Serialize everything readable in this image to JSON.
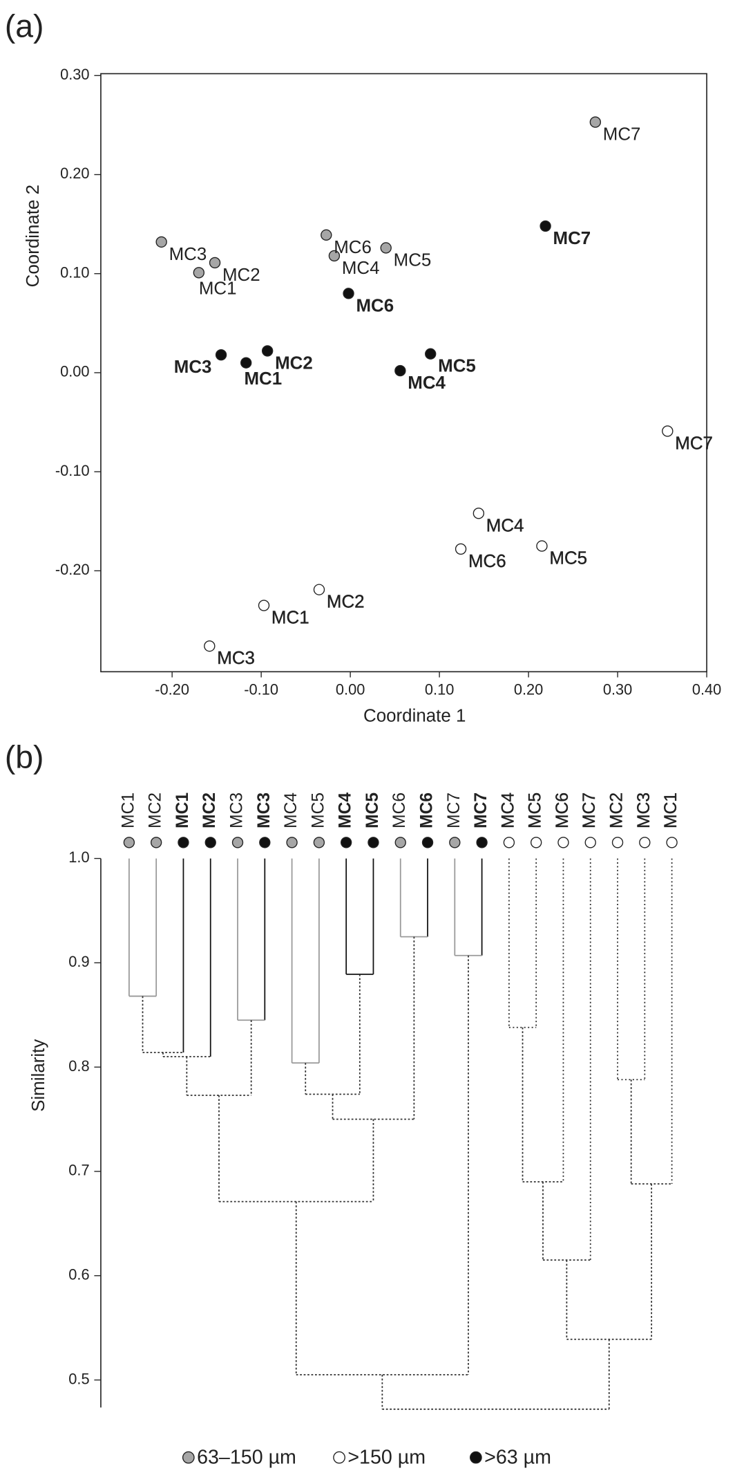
{
  "chart_data": [
    {
      "type": "scatter",
      "panel": "(a)",
      "x_label": "Coordinate 1",
      "y_label": "Coordinate 2",
      "xlim": [
        -0.28,
        0.4
      ],
      "ylim": [
        -0.3,
        0.3
      ],
      "xticks": [
        {
          "value": -0.2,
          "label": "-0.20"
        },
        {
          "value": -0.1,
          "label": "-0.10"
        },
        {
          "value": 0,
          "label": "0.00"
        },
        {
          "value": 0.1,
          "label": "0.10"
        },
        {
          "value": 0.2,
          "label": "0.20"
        },
        {
          "value": 0.3,
          "label": "0.30"
        },
        {
          "value": 0.4,
          "label": "0.40"
        }
      ],
      "yticks": [
        {
          "value": -0.2,
          "label": "-0.20"
        },
        {
          "value": -0.1,
          "label": "-0.10"
        },
        {
          "value": 0,
          "label": "0.00"
        },
        {
          "value": 0.1,
          "label": "0.10"
        },
        {
          "value": 0.2,
          "label": "0.20"
        },
        {
          "value": 0.3,
          "label": "0.30"
        }
      ],
      "series": [
        {
          "name": "63–150 µm",
          "color": "#a6a6a6",
          "labels": [
            "MC1",
            "MC2",
            "MC3",
            "MC4",
            "MC5",
            "MC6",
            "MC7"
          ],
          "x": [
            -0.17,
            -0.152,
            -0.212,
            -0.018,
            0.04,
            -0.027,
            0.275
          ],
          "values": [
            0.101,
            0.111,
            0.132,
            0.118,
            0.126,
            0.139,
            0.253
          ]
        },
        {
          "name": ">150 µm",
          "color": "#ffffff",
          "labels": [
            "MC1",
            "MC2",
            "MC3",
            "MC4",
            "MC5",
            "MC6",
            "MC7"
          ],
          "x": [
            -0.097,
            -0.035,
            -0.158,
            0.144,
            0.215,
            0.124,
            0.356
          ],
          "values": [
            -0.235,
            -0.219,
            -0.276,
            -0.142,
            -0.175,
            -0.178,
            -0.059
          ]
        },
        {
          "name": ">63 µm",
          "color": "#111111",
          "labels": [
            "MC1",
            "MC2",
            "MC3",
            "MC4",
            "MC5",
            "MC6",
            "MC7"
          ],
          "x": [
            -0.117,
            -0.093,
            -0.145,
            0.056,
            0.09,
            -0.002,
            0.219
          ],
          "values": [
            0.01,
            0.022,
            0.018,
            0.002,
            0.019,
            0.08,
            0.148
          ]
        }
      ]
    },
    {
      "type": "dendrogram",
      "panel": "(b)",
      "y_label": "Similarity",
      "ylim": [
        0.47,
        1.0
      ],
      "yticks": [
        {
          "value": 0.5,
          "label": "0.5"
        },
        {
          "value": 0.6,
          "label": "0.6"
        },
        {
          "value": 0.7,
          "label": "0.7"
        },
        {
          "value": 0.8,
          "label": "0.8"
        },
        {
          "value": 0.9,
          "label": "0.9"
        },
        {
          "value": 1.0,
          "label": "1.0"
        }
      ],
      "leaves": [
        "MC1",
        "MC2",
        "MC1",
        "MC2",
        "MC3",
        "MC3",
        "MC4",
        "MC5",
        "MC4",
        "MC5",
        "MC6",
        "MC6",
        "MC7",
        "MC7",
        "MC4",
        "MC5",
        "MC6",
        "MC7",
        "MC2",
        "MC3",
        "MC1"
      ],
      "leaf_groups": [
        0,
        0,
        2,
        2,
        0,
        2,
        0,
        0,
        2,
        2,
        0,
        2,
        0,
        2,
        1,
        1,
        1,
        1,
        1,
        1,
        1
      ],
      "merges": [
        {
          "children": [
            0,
            1
          ],
          "height": 0.868
        },
        {
          "children": [
            21,
            2
          ],
          "height": 0.814
        },
        {
          "children": [
            22,
            3
          ],
          "height": 0.81
        },
        {
          "children": [
            4,
            5
          ],
          "height": 0.845
        },
        {
          "children": [
            23,
            24
          ],
          "height": 0.773
        },
        {
          "children": [
            6,
            7
          ],
          "height": 0.804
        },
        {
          "children": [
            8,
            9
          ],
          "height": 0.889
        },
        {
          "children": [
            26,
            27
          ],
          "height": 0.774
        },
        {
          "children": [
            10,
            11
          ],
          "height": 0.925
        },
        {
          "children": [
            28,
            29
          ],
          "height": 0.75
        },
        {
          "children": [
            25,
            30
          ],
          "height": 0.671
        },
        {
          "children": [
            12,
            13
          ],
          "height": 0.907
        },
        {
          "children": [
            31,
            32
          ],
          "height": 0.505
        },
        {
          "children": [
            14,
            15
          ],
          "height": 0.838
        },
        {
          "children": [
            34,
            16
          ],
          "height": 0.69
        },
        {
          "children": [
            35,
            17
          ],
          "height": 0.615
        },
        {
          "children": [
            18,
            19
          ],
          "height": 0.788
        },
        {
          "children": [
            37,
            20
          ],
          "height": 0.688
        },
        {
          "children": [
            36,
            38
          ],
          "height": 0.539
        },
        {
          "children": [
            33,
            39
          ],
          "height": 0.472
        }
      ]
    }
  ]
}
